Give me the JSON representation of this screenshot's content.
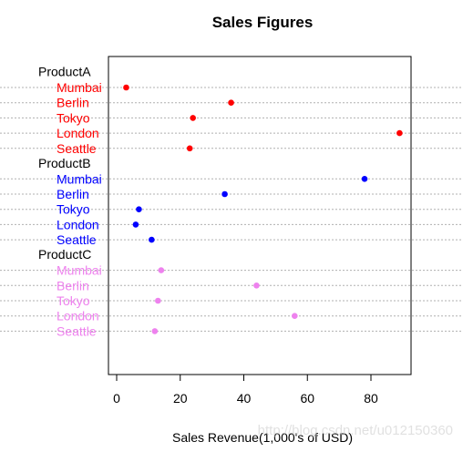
{
  "chart_data": {
    "type": "scatter",
    "subtype": "grouped-dotchart",
    "title": "Sales Figures",
    "xlabel": "Sales Revenue(1,000's of USD)",
    "ylabel": "",
    "xlim": [
      0,
      92
    ],
    "x_ticks": [
      0,
      20,
      40,
      60,
      80
    ],
    "grid": "dotted horizontal lines per row",
    "legend": "none",
    "groups": [
      {
        "name": "ProductA",
        "color": "#ff0000",
        "points": [
          {
            "label": "Mumbai",
            "value": 3
          },
          {
            "label": "Berlin",
            "value": 36
          },
          {
            "label": "Tokyo",
            "value": 24
          },
          {
            "label": "London",
            "value": 89
          },
          {
            "label": "Seattle",
            "value": 23
          }
        ]
      },
      {
        "name": "ProductB",
        "color": "#0000ff",
        "points": [
          {
            "label": "Mumbai",
            "value": 78
          },
          {
            "label": "Berlin",
            "value": 34
          },
          {
            "label": "Tokyo",
            "value": 7
          },
          {
            "label": "London",
            "value": 6
          },
          {
            "label": "Seattle",
            "value": 11
          }
        ]
      },
      {
        "name": "ProductC",
        "color": "#ee82ee",
        "points": [
          {
            "label": "Mumbai",
            "value": 14
          },
          {
            "label": "Berlin",
            "value": 44
          },
          {
            "label": "Tokyo",
            "value": 13
          },
          {
            "label": "London",
            "value": 56
          },
          {
            "label": "Seattle",
            "value": 12
          }
        ]
      }
    ]
  },
  "watermark": "http://blog.csdn.net/u012150360"
}
